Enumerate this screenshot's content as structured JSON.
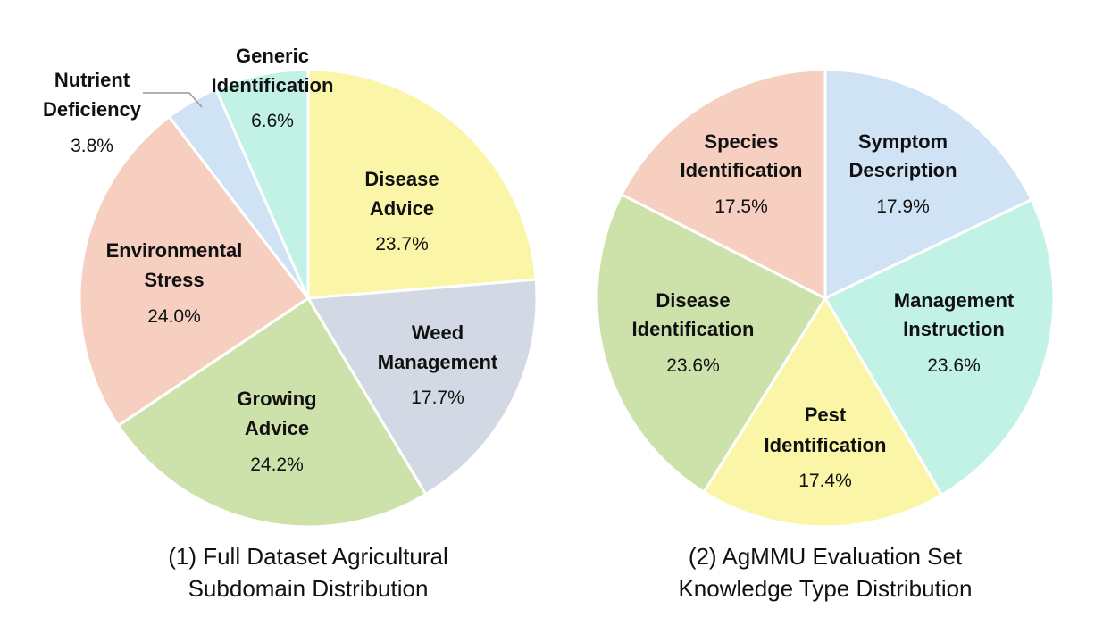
{
  "chart_data": [
    {
      "type": "pie",
      "title": "(1) Full Dataset Agricultural Subdomain Distribution",
      "title_lines": [
        "(1) Full Dataset Agricultural",
        "Subdomain Distribution"
      ],
      "slices": [
        {
          "label_lines": [
            "Disease",
            "Advice"
          ],
          "value": 23.7,
          "value_label": "23.7%",
          "color": "#fbf5a8"
        },
        {
          "label_lines": [
            "Weed",
            "Management"
          ],
          "value": 17.7,
          "value_label": "17.7%",
          "color": "#d3d9e4"
        },
        {
          "label_lines": [
            "Growing",
            "Advice"
          ],
          "value": 24.2,
          "value_label": "24.2%",
          "color": "#cde2ab"
        },
        {
          "label_lines": [
            "Environmental",
            "Stress"
          ],
          "value": 24.0,
          "value_label": "24.0%",
          "color": "#f6cfc1"
        },
        {
          "label_lines": [
            "Nutrient",
            "Deficiency"
          ],
          "value": 3.8,
          "value_label": "3.8%",
          "color": "#cfe3f5"
        },
        {
          "label_lines": [
            "Generic",
            "Identification"
          ],
          "value": 6.6,
          "value_label": "6.6%",
          "color": "#c2f2e5"
        }
      ]
    },
    {
      "type": "pie",
      "title": "(2) AgMMU Evaluation Set Knowledge Type Distribution",
      "title_lines": [
        "(2) AgMMU Evaluation Set",
        "Knowledge Type Distribution"
      ],
      "slices": [
        {
          "label_lines": [
            "Symptom",
            "Description"
          ],
          "value": 17.9,
          "value_label": "17.9%",
          "color": "#cfe3f5"
        },
        {
          "label_lines": [
            "Management",
            "Instruction"
          ],
          "value": 23.6,
          "value_label": "23.6%",
          "color": "#c2f2e5"
        },
        {
          "label_lines": [
            "Pest",
            "Identification"
          ],
          "value": 17.4,
          "value_label": "17.4%",
          "color": "#fbf5a8"
        },
        {
          "label_lines": [
            "Disease",
            "Identification"
          ],
          "value": 23.6,
          "value_label": "23.6%",
          "color": "#cde2ab"
        },
        {
          "label_lines": [
            "Species",
            "Identification"
          ],
          "value": 17.5,
          "value_label": "17.5%",
          "color": "#f6cfc1"
        }
      ]
    }
  ]
}
